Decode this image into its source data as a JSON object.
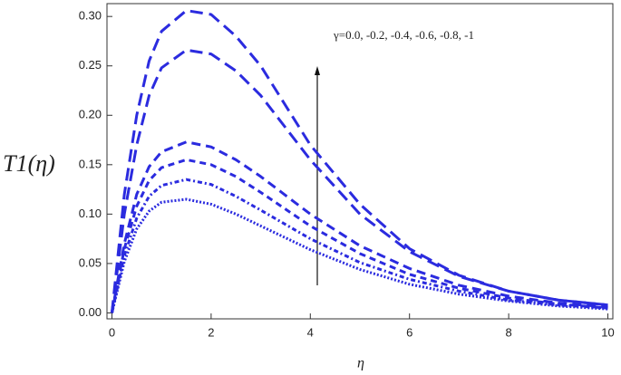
{
  "chart_data": {
    "type": "line",
    "xlabel": "η",
    "ylabel": "T1(η)",
    "annotation": "γ=0.0, -0.2, -0.4, -0.6, -0.8, -1",
    "x": [
      0,
      0.25,
      0.5,
      0.75,
      1,
      1.5,
      2,
      2.5,
      3,
      4,
      5,
      6,
      7,
      8,
      9,
      10
    ],
    "series": [
      {
        "color": "#2b2bdf",
        "style": "long-dash",
        "values": [
          0,
          0.12,
          0.2,
          0.255,
          0.285,
          0.306,
          0.302,
          0.28,
          0.25,
          0.17,
          0.11,
          0.065,
          0.038,
          0.022,
          0.013,
          0.008
        ]
      },
      {
        "color": "#2b2bdf",
        "style": "long-dash",
        "values": [
          0,
          0.1,
          0.17,
          0.22,
          0.248,
          0.266,
          0.262,
          0.245,
          0.22,
          0.155,
          0.1,
          0.062,
          0.037,
          0.022,
          0.013,
          0.008
        ]
      },
      {
        "color": "#2b2bdf",
        "style": "dash",
        "values": [
          0,
          0.07,
          0.12,
          0.148,
          0.163,
          0.173,
          0.168,
          0.155,
          0.138,
          0.1,
          0.068,
          0.045,
          0.028,
          0.017,
          0.01,
          0.006
        ]
      },
      {
        "color": "#2b2bdf",
        "style": "short-dash",
        "values": [
          0,
          0.065,
          0.108,
          0.134,
          0.147,
          0.155,
          0.15,
          0.138,
          0.122,
          0.088,
          0.06,
          0.039,
          0.025,
          0.015,
          0.009,
          0.005
        ]
      },
      {
        "color": "#2b2bdf",
        "style": "dot-dash",
        "values": [
          0,
          0.058,
          0.096,
          0.118,
          0.129,
          0.135,
          0.13,
          0.118,
          0.104,
          0.075,
          0.051,
          0.034,
          0.022,
          0.013,
          0.008,
          0.005
        ]
      },
      {
        "color": "#2b2bdf",
        "style": "dot",
        "values": [
          0,
          0.052,
          0.085,
          0.103,
          0.112,
          0.115,
          0.11,
          0.1,
          0.088,
          0.064,
          0.044,
          0.029,
          0.019,
          0.012,
          0.007,
          0.004
        ]
      }
    ],
    "xlim": [
      -0.1,
      10.1
    ],
    "xticks": [
      0,
      2,
      4,
      6,
      8,
      10
    ],
    "ylim": [
      -0.006,
      0.313
    ],
    "yticks": [
      {
        "value": 0,
        "label": "0.00"
      },
      {
        "value": 0.05,
        "label": "0.05"
      },
      {
        "value": 0.1,
        "label": "0.10"
      },
      {
        "value": 0.15,
        "label": "0.15"
      },
      {
        "value": 0.2,
        "label": "0.20"
      },
      {
        "value": 0.25,
        "label": "0.25"
      },
      {
        "value": 0.3,
        "label": "0.30"
      }
    ],
    "grid": false
  }
}
